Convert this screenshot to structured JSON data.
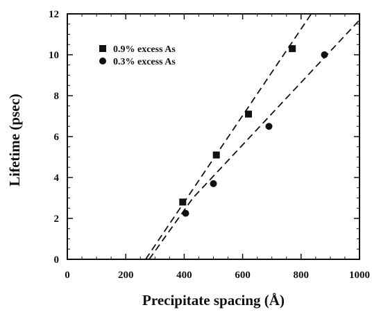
{
  "chart_data": {
    "type": "scatter",
    "title": "",
    "xlabel": "Precipitate spacing (Å)",
    "ylabel": "Lifetime (psec)",
    "xlim": [
      0,
      1000
    ],
    "ylim": [
      0,
      12
    ],
    "xticks": [
      0,
      200,
      400,
      600,
      800,
      1000
    ],
    "yticks": [
      0,
      2,
      4,
      6,
      8,
      10,
      12
    ],
    "grid": false,
    "legend_position": "top-left",
    "series": [
      {
        "name": "0.9% excess As",
        "marker": "square",
        "color": "#111111",
        "points": [
          {
            "x": 395,
            "y": 2.8
          },
          {
            "x": 510,
            "y": 5.1
          },
          {
            "x": 620,
            "y": 7.1
          },
          {
            "x": 770,
            "y": 10.3
          }
        ],
        "fit": {
          "style": "dashed",
          "points": [
            {
              "x": 268,
              "y": 0
            },
            {
              "x": 835,
              "y": 12
            }
          ]
        }
      },
      {
        "name": "0.3% excess As",
        "marker": "circle",
        "color": "#111111",
        "points": [
          {
            "x": 405,
            "y": 2.25
          },
          {
            "x": 500,
            "y": 3.7
          },
          {
            "x": 690,
            "y": 6.5
          },
          {
            "x": 880,
            "y": 10.0
          }
        ],
        "fit": {
          "style": "dashed",
          "points": [
            {
              "x": 280,
              "y": 0
            },
            {
              "x": 430,
              "y": 3.0
            },
            {
              "x": 1000,
              "y": 11.7
            }
          ]
        }
      }
    ]
  }
}
